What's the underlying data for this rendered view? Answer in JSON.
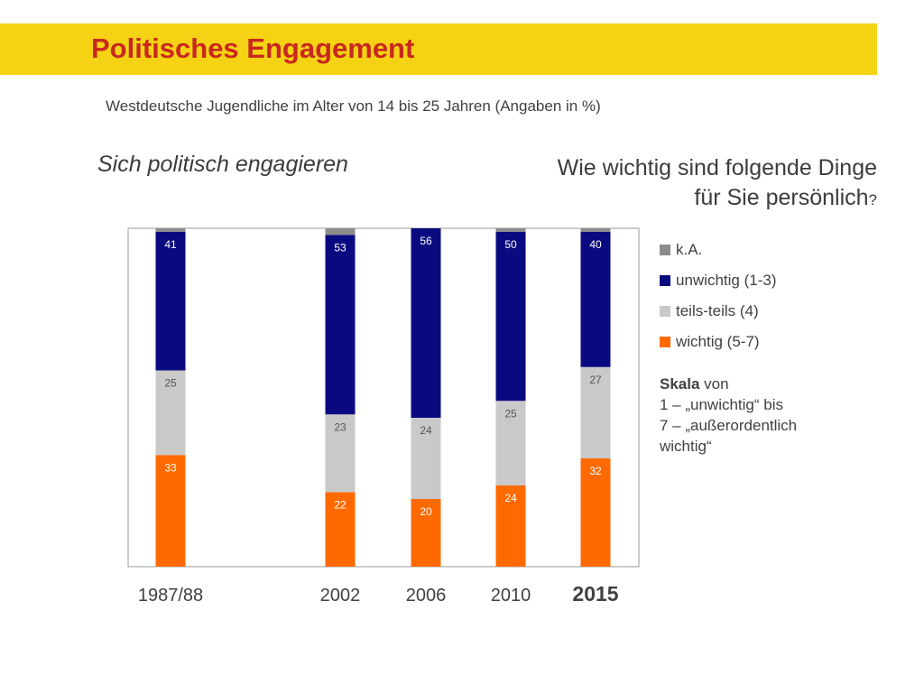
{
  "header": {
    "title": "Politisches Engagement",
    "subtitle": "Westdeutsche Jugendliche im Alter von 14 bis 25 Jahren (Angaben in %)"
  },
  "left_heading": "Sich politisch engagieren",
  "right_heading": {
    "line1": "Wie wichtig sind folgende Dinge",
    "line2": "für Sie persönlich",
    "qmark": "?"
  },
  "note": {
    "bold": "Skala",
    "rest1": " von",
    "line2": "1 – „unwichtig“ bis",
    "line3": "7 – „außerordentlich",
    "line4": "wichtig“"
  },
  "colors": {
    "wichtig": "#ff6a00",
    "teils": "#c9c9c9",
    "unwichtig": "#0a0a80",
    "ka": "#8c8c8c"
  },
  "chart_data": {
    "type": "bar",
    "stacked": true,
    "categories": [
      "1987/88",
      "2002",
      "2006",
      "2010",
      "2015"
    ],
    "highlight_category": "2015",
    "series": [
      {
        "name": "wichtig (5-7)",
        "key": "wichtig",
        "values": [
          33,
          22,
          20,
          24,
          32
        ]
      },
      {
        "name": "teils-teils (4)",
        "key": "teils",
        "values": [
          25,
          23,
          24,
          25,
          27
        ]
      },
      {
        "name": "unwichtig (1-3)",
        "key": "unwichtig",
        "values": [
          41,
          53,
          56,
          50,
          40
        ]
      },
      {
        "name": "k.A.",
        "key": "ka",
        "values": [
          1,
          2,
          0,
          1,
          1
        ]
      }
    ],
    "legend_order": [
      "ka",
      "unwichtig",
      "teils",
      "wichtig"
    ],
    "ylim": [
      0,
      100
    ],
    "legend_position": "right"
  }
}
